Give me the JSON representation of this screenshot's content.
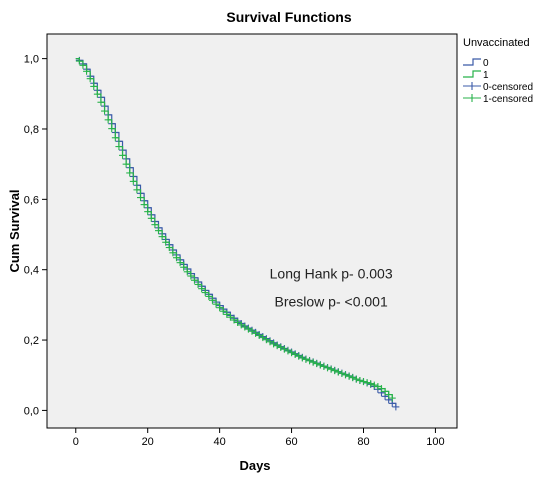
{
  "chart_data": {
    "type": "line",
    "title": "Survival Functions",
    "xlabel": "Days",
    "ylabel": "Cum Survival",
    "xlim": [
      -8,
      106
    ],
    "ylim": [
      -0.05,
      1.07
    ],
    "xticks": [
      0,
      20,
      40,
      60,
      80,
      100
    ],
    "xtick_labels": [
      "0",
      "20",
      "40",
      "60",
      "80",
      "100"
    ],
    "yticks": [
      0.0,
      0.2,
      0.4,
      0.6,
      0.8,
      1.0
    ],
    "ytick_labels": [
      "0,0",
      "0,2",
      "0,4",
      "0,6",
      "0,8",
      "1,0"
    ],
    "legend": {
      "title": "Unvaccinated",
      "position": "right",
      "entries": [
        {
          "label": "0",
          "kind": "step",
          "color": "#3b5ba8"
        },
        {
          "label": "1",
          "kind": "step",
          "color": "#27b24a"
        },
        {
          "label": "0-censored",
          "kind": "censor",
          "color": "#3b5ba8"
        },
        {
          "label": "1-censored",
          "kind": "censor",
          "color": "#27b24a"
        }
      ]
    },
    "annotations": [
      {
        "text": "Long Hank p- 0.003",
        "x": 71,
        "y": 0.375
      },
      {
        "text": "Breslow p- <0.001",
        "x": 71,
        "y": 0.295
      }
    ],
    "series": [
      {
        "name": "0",
        "color": "#3b5ba8",
        "x": [
          0,
          1,
          2,
          3,
          4,
          5,
          6,
          7,
          8,
          9,
          10,
          11,
          12,
          13,
          14,
          15,
          16,
          17,
          18,
          19,
          20,
          21,
          22,
          23,
          24,
          25,
          26,
          27,
          28,
          29,
          30,
          31,
          32,
          33,
          34,
          35,
          36,
          37,
          38,
          39,
          40,
          41,
          42,
          43,
          44,
          45,
          46,
          47,
          48,
          49,
          50,
          51,
          52,
          53,
          54,
          55,
          56,
          57,
          58,
          59,
          60,
          61,
          62,
          63,
          64,
          65,
          66,
          67,
          68,
          69,
          70,
          71,
          72,
          73,
          74,
          75,
          76,
          77,
          78,
          79,
          80,
          81,
          82,
          83,
          84,
          85,
          86,
          87,
          88,
          89
        ],
        "y": [
          1.0,
          0.995,
          0.985,
          0.97,
          0.95,
          0.93,
          0.91,
          0.89,
          0.865,
          0.84,
          0.815,
          0.79,
          0.765,
          0.74,
          0.715,
          0.69,
          0.665,
          0.64,
          0.617,
          0.596,
          0.576,
          0.556,
          0.537,
          0.519,
          0.502,
          0.486,
          0.471,
          0.456,
          0.442,
          0.428,
          0.415,
          0.402,
          0.389,
          0.377,
          0.365,
          0.353,
          0.341,
          0.33,
          0.319,
          0.308,
          0.298,
          0.288,
          0.279,
          0.27,
          0.262,
          0.254,
          0.247,
          0.24,
          0.234,
          0.228,
          0.222,
          0.216,
          0.21,
          0.204,
          0.198,
          0.192,
          0.186,
          0.181,
          0.176,
          0.171,
          0.166,
          0.161,
          0.156,
          0.151,
          0.146,
          0.142,
          0.138,
          0.134,
          0.13,
          0.126,
          0.122,
          0.118,
          0.114,
          0.11,
          0.106,
          0.102,
          0.098,
          0.094,
          0.089,
          0.085,
          0.082,
          0.078,
          0.074,
          0.068,
          0.06,
          0.05,
          0.04,
          0.03,
          0.02,
          0.01
        ]
      },
      {
        "name": "1",
        "color": "#27b24a",
        "x": [
          0,
          1,
          2,
          3,
          4,
          5,
          6,
          7,
          8,
          9,
          10,
          11,
          12,
          13,
          14,
          15,
          16,
          17,
          18,
          19,
          20,
          21,
          22,
          23,
          24,
          25,
          26,
          27,
          28,
          29,
          30,
          31,
          32,
          33,
          34,
          35,
          36,
          37,
          38,
          39,
          40,
          41,
          42,
          43,
          44,
          45,
          46,
          47,
          48,
          49,
          50,
          51,
          52,
          53,
          54,
          55,
          56,
          57,
          58,
          59,
          60,
          61,
          62,
          63,
          64,
          65,
          66,
          67,
          68,
          69,
          70,
          71,
          72,
          73,
          74,
          75,
          76,
          77,
          78,
          79,
          80,
          81,
          82,
          83,
          84,
          85,
          86,
          87,
          88
        ],
        "y": [
          1.0,
          0.993,
          0.981,
          0.964,
          0.943,
          0.921,
          0.899,
          0.876,
          0.851,
          0.826,
          0.801,
          0.775,
          0.75,
          0.725,
          0.7,
          0.675,
          0.651,
          0.627,
          0.605,
          0.585,
          0.565,
          0.546,
          0.528,
          0.511,
          0.494,
          0.478,
          0.463,
          0.448,
          0.434,
          0.42,
          0.407,
          0.394,
          0.382,
          0.37,
          0.358,
          0.346,
          0.335,
          0.324,
          0.313,
          0.302,
          0.292,
          0.282,
          0.273,
          0.265,
          0.257,
          0.25,
          0.243,
          0.237,
          0.231,
          0.225,
          0.219,
          0.213,
          0.207,
          0.201,
          0.195,
          0.189,
          0.184,
          0.179,
          0.174,
          0.169,
          0.164,
          0.159,
          0.154,
          0.149,
          0.145,
          0.141,
          0.137,
          0.133,
          0.129,
          0.125,
          0.121,
          0.117,
          0.113,
          0.109,
          0.105,
          0.101,
          0.097,
          0.093,
          0.089,
          0.085,
          0.082,
          0.079,
          0.076,
          0.072,
          0.068,
          0.062,
          0.054,
          0.045,
          0.035
        ]
      }
    ]
  }
}
